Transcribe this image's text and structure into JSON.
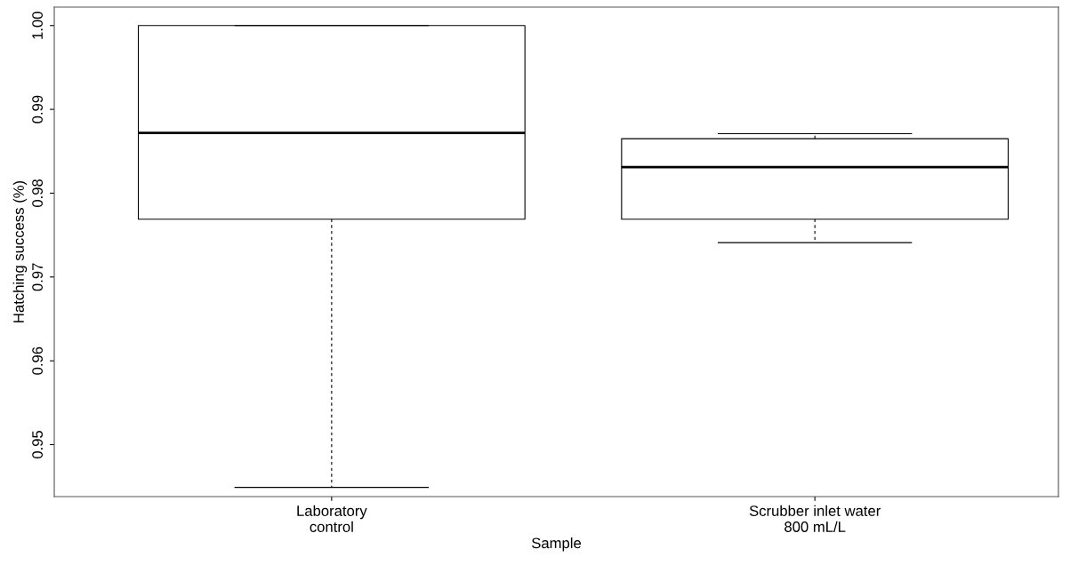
{
  "chart_data": {
    "type": "box",
    "xlabel": "Sample",
    "ylabel": "Hatching success (%)",
    "categories": [
      "Laboratory\ncontrol",
      "Scrubber inlet water\n800 mL/L"
    ],
    "boxes": [
      {
        "low": 0.9449,
        "q1": 0.9769,
        "median": 0.9872,
        "q3": 1.0,
        "high": 1.0
      },
      {
        "low": 0.9741,
        "q1": 0.9769,
        "median": 0.9831,
        "q3": 0.9865,
        "high": 0.9871
      }
    ],
    "ylim": [
      0.9438,
      1.0022
    ],
    "yticks": [
      {
        "value": 0.95,
        "label": "0.95"
      },
      {
        "value": 0.96,
        "label": "0.96"
      },
      {
        "value": 0.97,
        "label": "0.97"
      },
      {
        "value": 0.98,
        "label": "0.98"
      },
      {
        "value": 0.99,
        "label": "0.99"
      },
      {
        "value": 1.0,
        "label": "1.00"
      }
    ],
    "grid": false
  }
}
